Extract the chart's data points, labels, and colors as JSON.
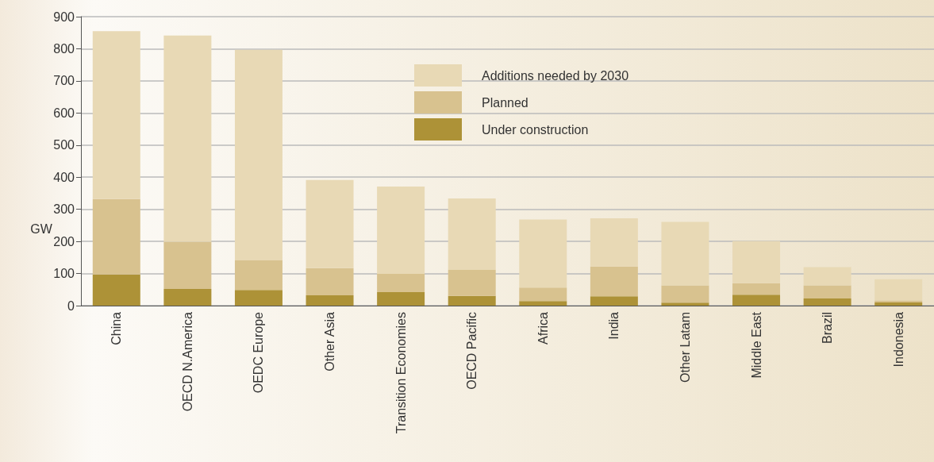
{
  "chart_data": {
    "type": "bar",
    "stacked": true,
    "ylabel": "GW",
    "categories": [
      "China",
      "OECD N.America",
      "OEDC Europe",
      "Other Asia",
      "Transition Economies",
      "OECD Pacific",
      "Africa",
      "India",
      "Other Latam",
      "Middle East",
      "Brazil",
      "Indonesia"
    ],
    "series": [
      {
        "name": "Under construction",
        "color": "#ad9237",
        "values": [
          97,
          52,
          49,
          32,
          42,
          30,
          14,
          29,
          9,
          34,
          22,
          10
        ]
      },
      {
        "name": "Planned",
        "color": "#d8c28f",
        "values": [
          235,
          147,
          92,
          85,
          57,
          81,
          42,
          93,
          54,
          36,
          41,
          6
        ]
      },
      {
        "name": "Additions needed by 2030",
        "color": "#e8d9b5",
        "values": [
          523,
          642,
          656,
          274,
          272,
          223,
          212,
          150,
          198,
          131,
          57,
          66
        ]
      }
    ],
    "ylim": [
      0,
      900
    ],
    "yticks": [
      0,
      100,
      200,
      300,
      400,
      500,
      600,
      700,
      800,
      900
    ],
    "grid": "y",
    "legend": "top"
  }
}
